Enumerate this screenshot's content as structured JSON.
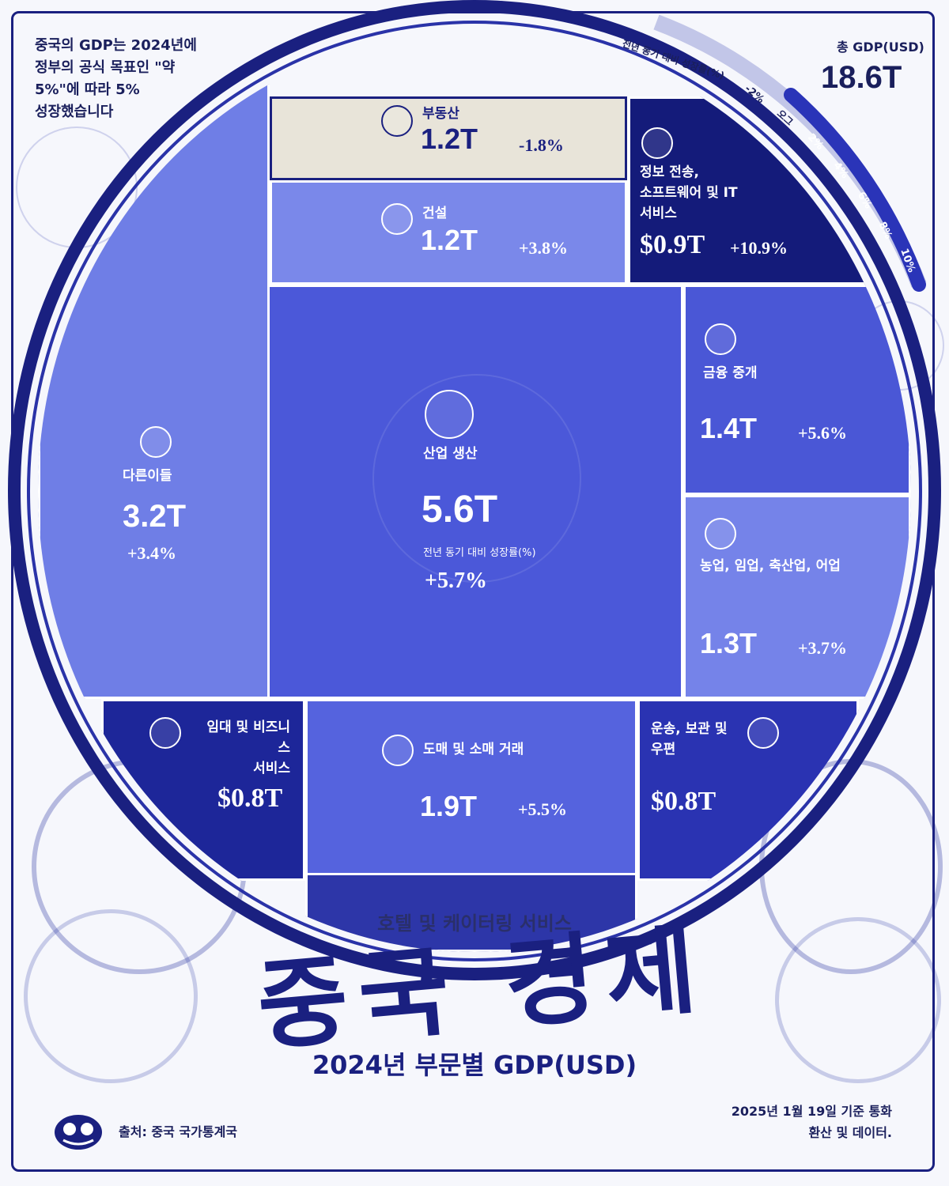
{
  "intro_text": "중국의 GDP는 2024년에\n정부의 공식 목표인 \"약\n5%\"에 따라 5%\n성장했습니다",
  "total": {
    "label": "총 GDP(USD)",
    "value": "18.6T"
  },
  "growth_scale": {
    "title": "전년 동기 대비 성장률(%)",
    "ticks": [
      "-2%",
      "오그",
      "2%",
      "4%",
      "6%",
      "8%",
      "10%"
    ]
  },
  "chart_data": {
    "type": "treemap",
    "unit": "USD",
    "title": "중국 경제",
    "subtitle": "2024년 부문별 GDP(USD)",
    "total": 18.6,
    "sectors": [
      {
        "name": "산업 생산",
        "value": 5.6,
        "value_text": "5.6T",
        "growth": 5.7,
        "growth_text": "+5.7%",
        "growth_label": "전년 동기 대비 성장률(%)",
        "color": "#4b58d9"
      },
      {
        "name": "다른이들",
        "value": 3.2,
        "value_text": "3.2T",
        "growth": 3.4,
        "growth_text": "+3.4%",
        "color": "#6f7ee6"
      },
      {
        "name": "도매 및 소매 거래",
        "value": 1.9,
        "value_text": "1.9T",
        "growth": 5.5,
        "growth_text": "+5.5%",
        "color": "#5563de"
      },
      {
        "name": "금융 중개",
        "value": 1.4,
        "value_text": "1.4T",
        "growth": 5.6,
        "growth_text": "+5.6%",
        "color": "#4a57d6"
      },
      {
        "name": "농업, 임업, 축산업, 어업",
        "value": 1.3,
        "value_text": "1.3T",
        "growth": 3.7,
        "growth_text": "+3.7%",
        "color": "#7583e9"
      },
      {
        "name": "부동산",
        "value": 1.2,
        "value_text": "1.2T",
        "growth": -1.8,
        "growth_text": "-1.8%",
        "color": "#e8e4d9"
      },
      {
        "name": "건설",
        "value": 1.2,
        "value_text": "1.2T",
        "growth": 3.8,
        "growth_text": "+3.8%",
        "color": "#7a88ea"
      },
      {
        "name": "정보 전송,\n소프트웨어 및 IT\n서비스",
        "value": 0.9,
        "value_text": "$0.9T",
        "growth": 10.9,
        "growth_text": "+10.9%",
        "color": "#141b7a"
      },
      {
        "name": "임대 및 비즈니스\n서비스",
        "value": 0.8,
        "value_text": "$0.8T",
        "color": "#1d2699"
      },
      {
        "name": "운송, 보관 및\n우편",
        "value": 0.8,
        "value_text": "$0.8T",
        "color": "#2a33b2"
      },
      {
        "name": "호텔 및 케이터링 서비스",
        "color": "#2d36a8"
      }
    ]
  },
  "title": "중국 경제",
  "subtitle": "2024년 부문별 GDP(USD)",
  "source": "출처: 중국 국가통계국",
  "date_note": "2025년 1월 19일 기준 통화\n환산 및 데이터."
}
